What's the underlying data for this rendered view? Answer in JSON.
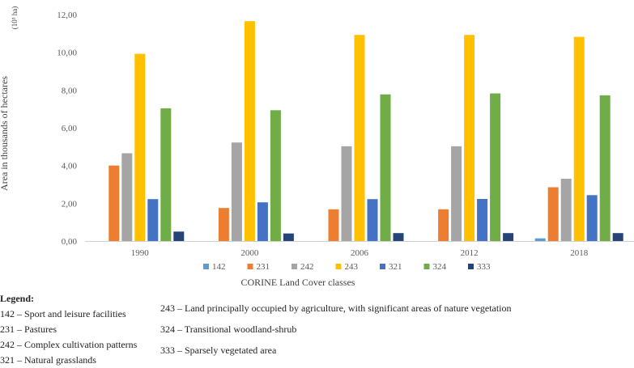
{
  "chart_data": {
    "type": "bar",
    "categories": [
      "1990",
      "2000",
      "2006",
      "2012",
      "2018"
    ],
    "series": [
      {
        "name": "142",
        "color": "#5B9BD5",
        "values": [
          0,
          0,
          0,
          0,
          0.14
        ]
      },
      {
        "name": "231",
        "color": "#ED7D31",
        "values": [
          4.0,
          1.75,
          1.68,
          1.68,
          2.85
        ]
      },
      {
        "name": "242",
        "color": "#A5A5A5",
        "values": [
          4.65,
          5.22,
          5.02,
          5.02,
          3.3
        ]
      },
      {
        "name": "243",
        "color": "#FFC000",
        "values": [
          9.92,
          11.65,
          10.92,
          10.92,
          10.82
        ]
      },
      {
        "name": "321",
        "color": "#4472C4",
        "values": [
          2.22,
          2.05,
          2.22,
          2.23,
          2.43
        ]
      },
      {
        "name": "324",
        "color": "#70AD47",
        "values": [
          7.03,
          6.93,
          7.77,
          7.82,
          7.72
        ]
      },
      {
        "name": "333",
        "color": "#264478",
        "values": [
          0.5,
          0.4,
          0.42,
          0.42,
          0.42
        ]
      }
    ],
    "ylim": [
      0,
      12
    ],
    "yticks": [
      "0,00",
      "2,00",
      "4,00",
      "6,00",
      "8,00",
      "10,00",
      "12,00"
    ],
    "ylabel": "Area in thousands of hectares",
    "yunit": "(10³ ha)",
    "xlabel": "CORINE Land Cover classes",
    "grid": false,
    "legend_position": "bottom"
  },
  "notes": {
    "heading": "Legend:",
    "left": [
      "142 – Sport and leisure facilities",
      "231 – Pastures",
      "242 – Complex cultivation patterns",
      "321 – Natural grasslands"
    ],
    "right": [
      "243 – Land principally occupied by agriculture, with significant areas of nature vegetation",
      "324 – Transitional woodland-shrub",
      "333 – Sparsely vegetated area"
    ]
  }
}
